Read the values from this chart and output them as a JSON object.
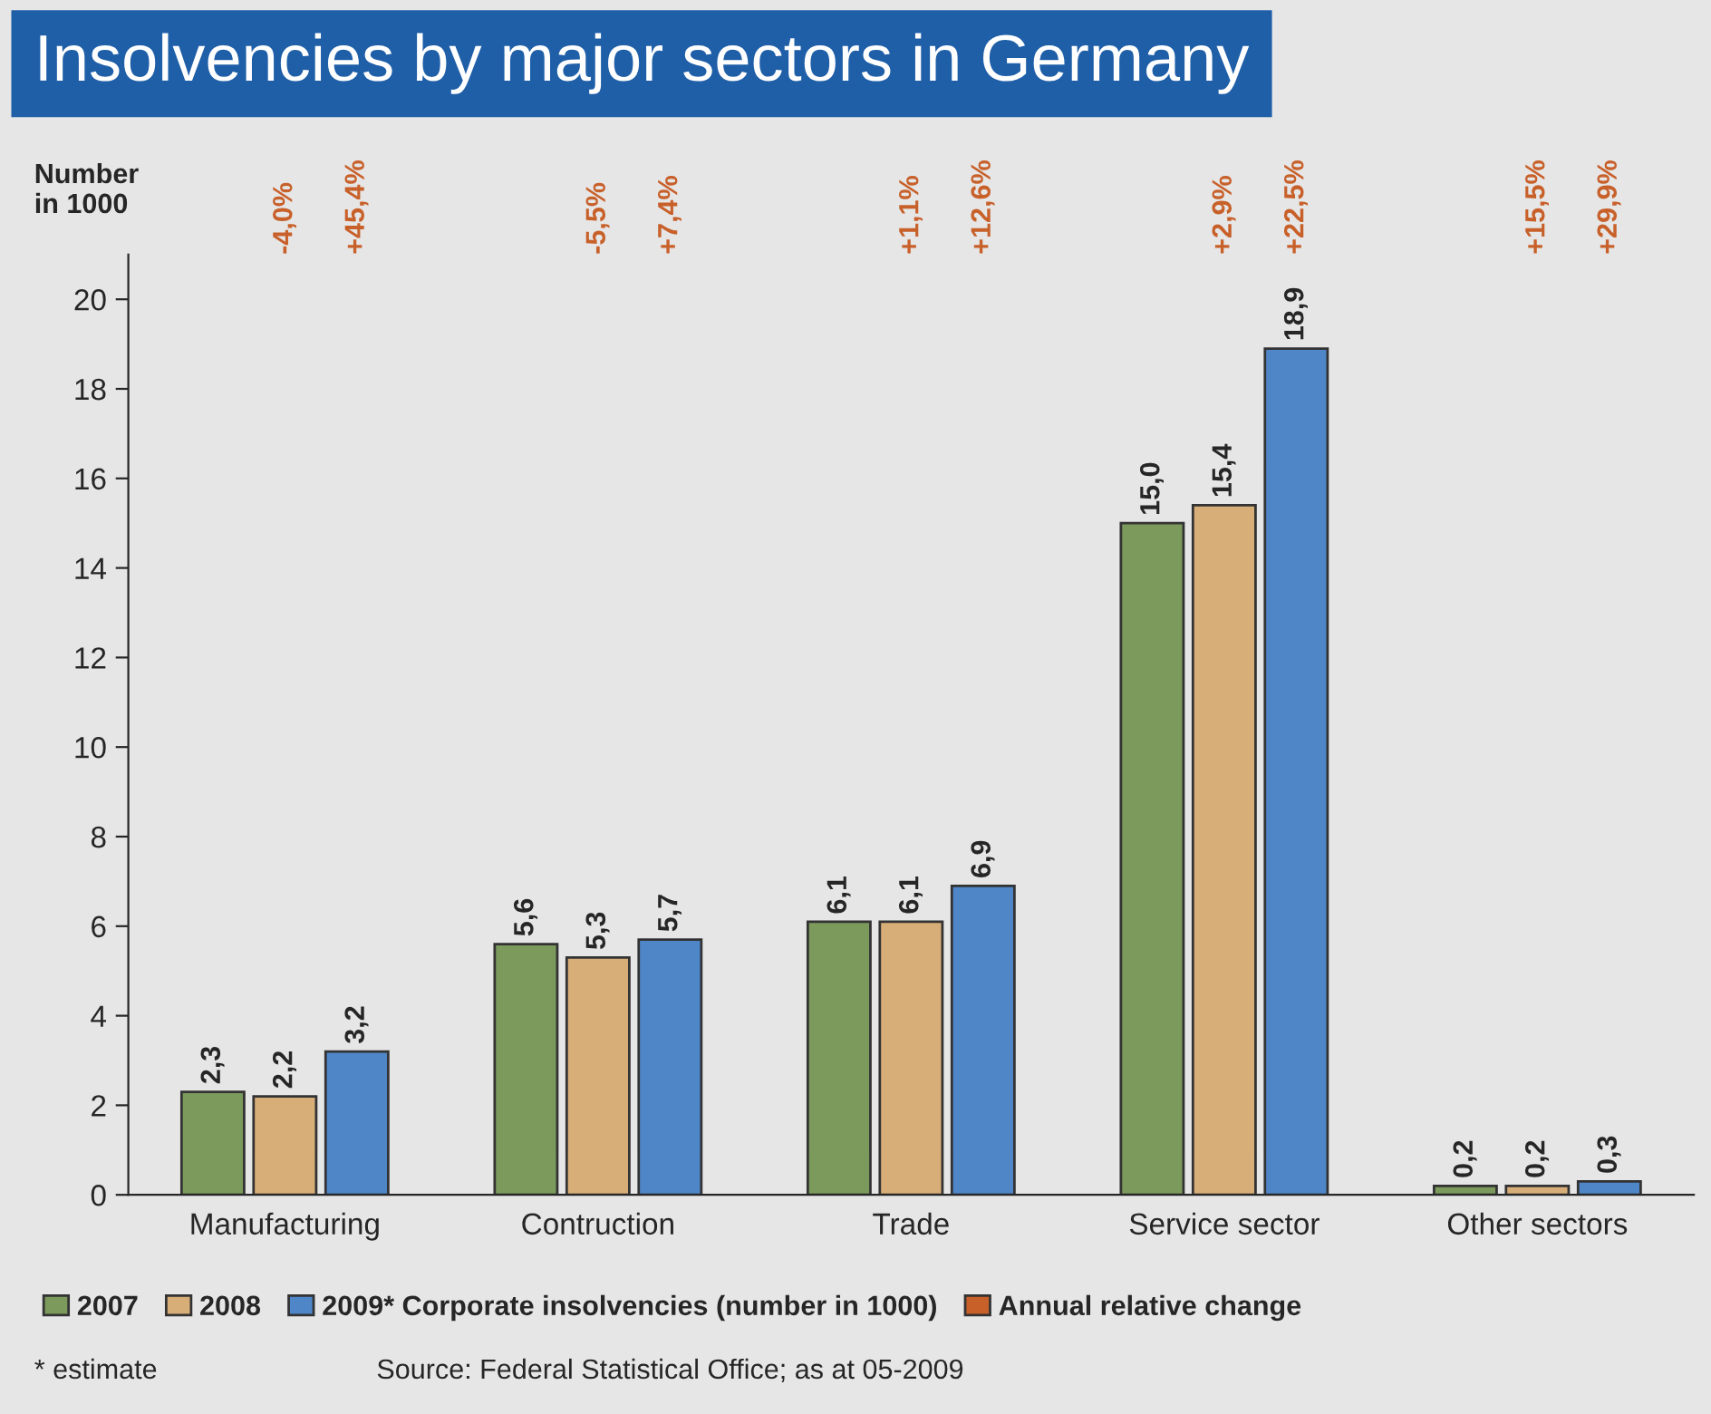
{
  "chart_data": {
    "type": "bar",
    "title": "Insolvencies by major sectors in Germany",
    "ylabel": "Number\nin 1000",
    "categories": [
      "Manufacturing",
      "Contruction",
      "Trade",
      "Service sector",
      "Other sectors"
    ],
    "series": [
      {
        "name": "2007",
        "color": "#7b9a5c",
        "values": [
          2.3,
          5.6,
          6.1,
          15.0,
          0.2
        ],
        "value_labels": [
          "2,3",
          "5,6",
          "6,1",
          "15,0",
          "0,2"
        ]
      },
      {
        "name": "2008",
        "color": "#d8ae78",
        "values": [
          2.2,
          5.3,
          6.1,
          15.4,
          0.2
        ],
        "value_labels": [
          "2,2",
          "5,3",
          "6,1",
          "15,4",
          "0,2"
        ]
      },
      {
        "name": "2009* Corporate insolvencies (number in 1000)",
        "color": "#4f86c8",
        "values": [
          3.2,
          5.7,
          6.9,
          18.9,
          0.3
        ],
        "value_labels": [
          "3,2",
          "5,7",
          "6,9",
          "18,9",
          "0,3"
        ]
      },
      {
        "name": "Annual relative change",
        "color": "#c8602a",
        "values": [
          null,
          null,
          null,
          null,
          null
        ]
      }
    ],
    "ylim": [
      0,
      21
    ],
    "yticks": [
      0,
      2,
      4,
      6,
      8,
      10,
      12,
      14,
      16,
      18,
      20
    ],
    "grid": false,
    "legend": "bottom",
    "annotations": [
      "-4,0%",
      "+45,4%",
      "-5,5%",
      "+7,4%",
      "+1,1%",
      "+12,6%",
      "+2,9%",
      "+22,5%",
      "+15,5%",
      "+29,9%",
      "* estimate",
      "Source: Federal Statistical Office; as at 05-2009"
    ]
  }
}
